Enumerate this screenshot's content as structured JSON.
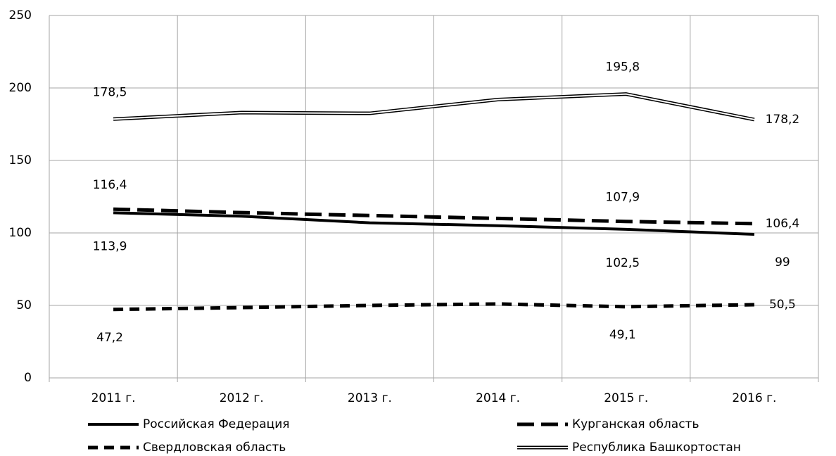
{
  "chart_data": {
    "type": "line",
    "categories": [
      "2011 г.",
      "2012 г.",
      "2013 г.",
      "2014 г.",
      "2015 г.",
      "2016 г."
    ],
    "ylim": [
      0,
      250
    ],
    "yticks": [
      0,
      50,
      100,
      150,
      200,
      250
    ],
    "grid": true,
    "series": [
      {
        "name": "Российская Федерация",
        "color": "#000000",
        "line_style": "solid",
        "values": [
          113.9,
          111.5,
          107,
          105,
          102.5,
          99
        ],
        "value_labels": [
          "113,9",
          null,
          null,
          null,
          "102,5",
          "99"
        ]
      },
      {
        "name": "Курганская область",
        "color": "#000000",
        "line_style": "long-dash",
        "values": [
          116.4,
          114,
          112,
          110,
          107.9,
          106.4
        ],
        "value_labels": [
          "116,4",
          null,
          null,
          null,
          "107,9",
          "106,4"
        ]
      },
      {
        "name": "Свердловская область",
        "color": "#000000",
        "line_style": "dash",
        "values": [
          47.2,
          48.5,
          50,
          51,
          49.1,
          50.5
        ],
        "value_labels": [
          "47,2",
          null,
          null,
          null,
          "49,1",
          "50,5"
        ]
      },
      {
        "name": "Республика Башкортостан",
        "color": "#000000",
        "line_style": "double",
        "values": [
          178.5,
          183,
          182.5,
          192,
          195.8,
          178.2
        ],
        "value_labels": [
          "178,5",
          null,
          null,
          null,
          "195,8",
          "178,2"
        ]
      }
    ]
  }
}
